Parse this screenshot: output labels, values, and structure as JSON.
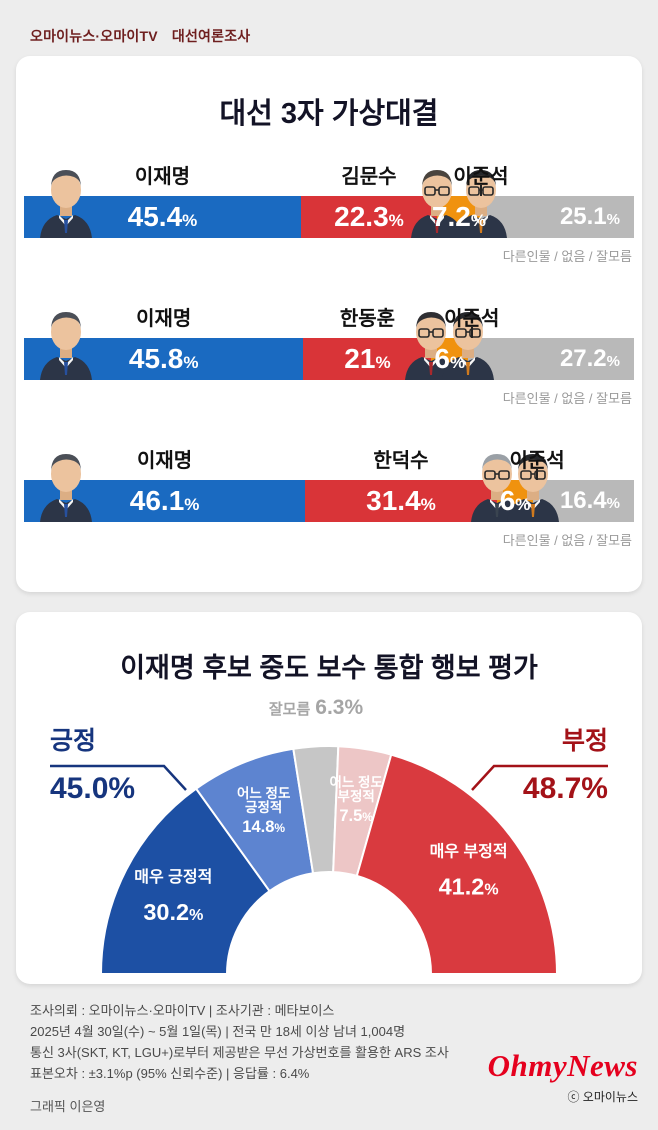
{
  "header": {
    "brand": "오마이뉴스·오마이TV",
    "label": "대선여론조사"
  },
  "percent_symbol": "%",
  "chart_data": [
    {
      "type": "bar",
      "title": "대선 3자 가상대결",
      "note": "다른인물 / 없음 / 잘모름",
      "unit": "%",
      "rows": [
        {
          "segments": [
            {
              "name": "이재명",
              "value": 45.4,
              "display": "45.4",
              "color": "#1a6ac1",
              "avatar": {
                "hair": "#4b4f57",
                "glasses": false,
                "tie": "#27509e"
              }
            },
            {
              "name": "김문수",
              "value": 22.3,
              "display": "22.3",
              "color": "#d93438",
              "avatar": {
                "hair": "#4a443e",
                "glasses": true,
                "tie": "#a8282c"
              }
            },
            {
              "name": "이준석",
              "value": 7.2,
              "display": "7.2",
              "color": "#f0920e",
              "connector": true,
              "avatar": {
                "hair": "#26282c",
                "glasses": true,
                "tie": "#d07a1e"
              }
            },
            {
              "name": "",
              "value": 25.1,
              "display": "25.1",
              "color": "#b9b9b9",
              "others": true
            }
          ]
        },
        {
          "segments": [
            {
              "name": "이재명",
              "value": 45.8,
              "display": "45.8",
              "color": "#1a6ac1",
              "avatar": {
                "hair": "#4b4f57",
                "glasses": false,
                "tie": "#27509e"
              }
            },
            {
              "name": "한동훈",
              "value": 21,
              "display": "21",
              "color": "#d93438",
              "avatar": {
                "hair": "#2f2f33",
                "glasses": true,
                "tie": "#a8282c"
              }
            },
            {
              "name": "이준석",
              "value": 6,
              "display": "6",
              "color": "#f0920e",
              "connector": true,
              "avatar": {
                "hair": "#26282c",
                "glasses": true,
                "tie": "#d07a1e"
              }
            },
            {
              "name": "",
              "value": 27.2,
              "display": "27.2",
              "color": "#b9b9b9",
              "others": true
            }
          ]
        },
        {
          "segments": [
            {
              "name": "이재명",
              "value": 46.1,
              "display": "46.1",
              "color": "#1a6ac1",
              "avatar": {
                "hair": "#4b4f57",
                "glasses": false,
                "tie": "#27509e"
              }
            },
            {
              "name": "한덕수",
              "value": 31.4,
              "display": "31.4",
              "color": "#d93438",
              "avatar": {
                "hair": "#9aa0a6",
                "glasses": true,
                "tie": "#3a4450"
              }
            },
            {
              "name": "이준석",
              "value": 6,
              "display": "6",
              "color": "#f0920e",
              "connector": true,
              "avatar": {
                "hair": "#26282c",
                "glasses": true,
                "tie": "#d07a1e"
              }
            },
            {
              "name": "",
              "value": 16.4,
              "display": "16.4",
              "color": "#b9b9b9",
              "others": true
            }
          ]
        }
      ]
    },
    {
      "type": "pie",
      "subtype": "half-donut",
      "title": "이재명 후보 중도 보수 통합 행보 평가",
      "top_label": {
        "name": "잘모름",
        "pct": "6.3%"
      },
      "left_label": {
        "name": "긍정",
        "pct": "45.0%",
        "color": "#16357e"
      },
      "right_label": {
        "name": "부정",
        "pct": "48.7%",
        "color": "#a31218"
      },
      "groups": [
        {
          "label": "긍정",
          "value": 45.0
        },
        {
          "label": "부정",
          "value": 48.7
        },
        {
          "label": "잘모름",
          "value": 6.3
        }
      ],
      "segments": [
        {
          "label": "매우 긍정적",
          "lines": [
            "매우 긍정적"
          ],
          "value": 30.2,
          "display": "30.2",
          "color": "#1d50a4",
          "text_size": "big"
        },
        {
          "label": "어느 정도 긍정적",
          "lines": [
            "어느 정도",
            "긍정적"
          ],
          "value": 14.8,
          "display": "14.8",
          "color": "#5d84d0",
          "text_size": "small"
        },
        {
          "label": "잘모름",
          "lines": [],
          "value": 6.3,
          "display": "6.3",
          "color": "#c6c6c6"
        },
        {
          "label": "어느 정도 부정적",
          "lines": [
            "어느 정도",
            "부정적"
          ],
          "value": 7.5,
          "display": "7.5",
          "color": "#edc6c6",
          "text_size": "small"
        },
        {
          "label": "매우 부정적",
          "lines": [
            "매우 부정적"
          ],
          "value": 41.2,
          "display": "41.2",
          "color": "#d93a3f",
          "text_size": "big"
        }
      ]
    }
  ],
  "footer": {
    "lines": [
      "조사의뢰 : 오마이뉴스·오마이TV | 조사기관 : 메타보이스",
      "2025년 4월 30일(수) ~ 5월 1일(목) | 전국 만 18세 이상 남녀 1,004명",
      "통신 3사(SKT, KT, LGU+)로부터 제공받은 무선 가상번호를 활용한 ARS 조사",
      "표본오차 : ±3.1%p (95% 신뢰수준) | 응답률 : 6.4%"
    ],
    "credit": "그래픽 이은영"
  },
  "logo": {
    "text": "OhmyNews",
    "copyright": "ⓒ 오마이뉴스"
  }
}
